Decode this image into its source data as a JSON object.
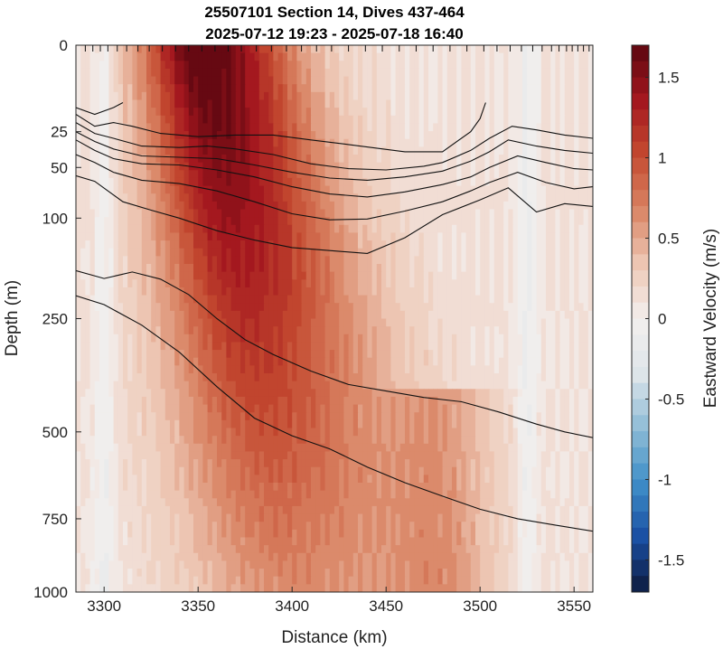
{
  "chart_data": {
    "type": "heatmap",
    "title": [
      "25507101 Section 14, Dives 437-464",
      "2025-07-12 19:23 - 2025-07-18 16:40"
    ],
    "xlabel": "Distance (km)",
    "ylabel": "Depth (m)",
    "colorbar_label": "Eastward Velocity (m/s)",
    "xlim": [
      3285,
      3560
    ],
    "ylim": [
      0,
      1000
    ],
    "y_scale": "sqrt",
    "x_ticks": [
      3300,
      3350,
      3400,
      3450,
      3500,
      3550
    ],
    "x_tick_labels": [
      "3300",
      "3350",
      "3400",
      "3450",
      "3500",
      "3550"
    ],
    "y_ticks": [
      0,
      25,
      50,
      100,
      250,
      500,
      750,
      1000
    ],
    "y_tick_labels": [
      "0",
      "25",
      "50",
      "100",
      "250",
      "500",
      "750",
      "1000"
    ],
    "clim": [
      -1.7,
      1.7
    ],
    "colorbar_ticks": [
      1.5,
      1,
      0.5,
      0,
      -0.5,
      -1,
      -1.5
    ],
    "colorbar_tick_labels": [
      "1.5",
      "1",
      "0.5",
      "0",
      "-0.5",
      "-1",
      "-1.5"
    ],
    "colormap": [
      "#0d1a3d",
      "#1a4fa3",
      "#3f8fc8",
      "#8fbcd6",
      "#dfe6ea",
      "#f3efed",
      "#eec7b4",
      "#d98464",
      "#c44a30",
      "#a3161e",
      "#5c0710"
    ],
    "dive_markers_x": [
      3290,
      3294,
      3298,
      3302,
      3307,
      3312,
      3318,
      3324,
      3331,
      3338,
      3345,
      3352,
      3359,
      3366,
      3373,
      3381,
      3389,
      3397,
      3405,
      3413,
      3421,
      3430,
      3439,
      3448,
      3457,
      3466,
      3475,
      3484,
      3493,
      3502,
      3509,
      3516,
      3522,
      3528,
      3533,
      3538,
      3542,
      3546,
      3549,
      3552,
      3555,
      3558
    ],
    "isopycnals": [
      {
        "x": [
          3285,
          3295,
          3305,
          3310
        ],
        "y": [
          13,
          16,
          13,
          11
        ]
      },
      {
        "x": [
          3285,
          3295,
          3305,
          3315,
          3330,
          3350,
          3370,
          3390,
          3410,
          3430,
          3460,
          3480,
          3495,
          3500,
          3503
        ],
        "y": [
          16,
          22,
          20,
          22,
          26,
          28,
          27,
          27,
          30,
          33,
          38,
          38,
          25,
          18,
          11
        ]
      },
      {
        "x": [
          3285,
          3295,
          3305,
          3320,
          3340,
          3355,
          3370,
          3390,
          3410,
          3430,
          3450,
          3470,
          3480,
          3495,
          3505,
          3517,
          3530,
          3545,
          3560
        ],
        "y": [
          20,
          26,
          29,
          34,
          35,
          34,
          36,
          40,
          47,
          51,
          52,
          49,
          46,
          37,
          29,
          22,
          24,
          27,
          29
        ]
      },
      {
        "x": [
          3285,
          3295,
          3305,
          3320,
          3340,
          3360,
          3380,
          3400,
          3420,
          3440,
          3460,
          3480,
          3495,
          3505,
          3515,
          3530,
          3545,
          3560
        ],
        "y": [
          25,
          31,
          36,
          41,
          42,
          43,
          48,
          54,
          59,
          61,
          58,
          53,
          45,
          38,
          30,
          34,
          37,
          39
        ]
      },
      {
        "x": [
          3285,
          3295,
          3305,
          3320,
          3340,
          3360,
          3380,
          3400,
          3420,
          3440,
          3460,
          3480,
          3495,
          3505,
          3520,
          3535,
          3550,
          3560
        ],
        "y": [
          30,
          37,
          43,
          47,
          48,
          52,
          58,
          67,
          74,
          77,
          72,
          65,
          58,
          50,
          41,
          46,
          51,
          52
        ]
      },
      {
        "x": [
          3285,
          3295,
          3305,
          3320,
          3340,
          3360,
          3380,
          3400,
          3420,
          3440,
          3460,
          3480,
          3495,
          3505,
          3520,
          3535,
          3550,
          3560
        ],
        "y": [
          40,
          46,
          54,
          61,
          64,
          71,
          82,
          95,
          102,
          101,
          92,
          82,
          71,
          63,
          54,
          63,
          69,
          67
        ]
      },
      {
        "x": [
          3285,
          3295,
          3310,
          3325,
          3340,
          3360,
          3380,
          3400,
          3420,
          3440,
          3460,
          3480,
          3500,
          3515,
          3530,
          3545,
          3560
        ],
        "y": [
          57,
          62,
          82,
          91,
          100,
          115,
          127,
          137,
          141,
          145,
          124,
          96,
          80,
          68,
          93,
          84,
          87
        ]
      },
      {
        "x": [
          3285,
          3300,
          3315,
          3330,
          3345,
          3360,
          3375,
          3390,
          3410,
          3430,
          3450,
          3470,
          3490,
          3510,
          3530,
          3545,
          3560
        ],
        "y": [
          170,
          182,
          172,
          183,
          208,
          250,
          290,
          320,
          355,
          385,
          400,
          415,
          425,
          450,
          480,
          500,
          515
        ]
      },
      {
        "x": [
          3285,
          3300,
          3320,
          3340,
          3360,
          3380,
          3400,
          3420,
          3440,
          3460,
          3480,
          3500,
          3520,
          3540,
          3560
        ],
        "y": [
          210,
          225,
          262,
          315,
          390,
          465,
          510,
          545,
          595,
          640,
          680,
          720,
          750,
          770,
          790
        ]
      }
    ],
    "velocity_field": {
      "jet": {
        "x_center": 3352,
        "x_center_deep": 3400,
        "width_surface": 28,
        "width_deep": 50,
        "peak_surface": 1.65,
        "peak_deep": 0.55
      },
      "east_band": {
        "x_center": 3480,
        "width": 20,
        "value": 0.35,
        "depth_from": 400
      },
      "background": 0.12,
      "weak_negative_near": [
        3300,
        3525
      ]
    }
  }
}
